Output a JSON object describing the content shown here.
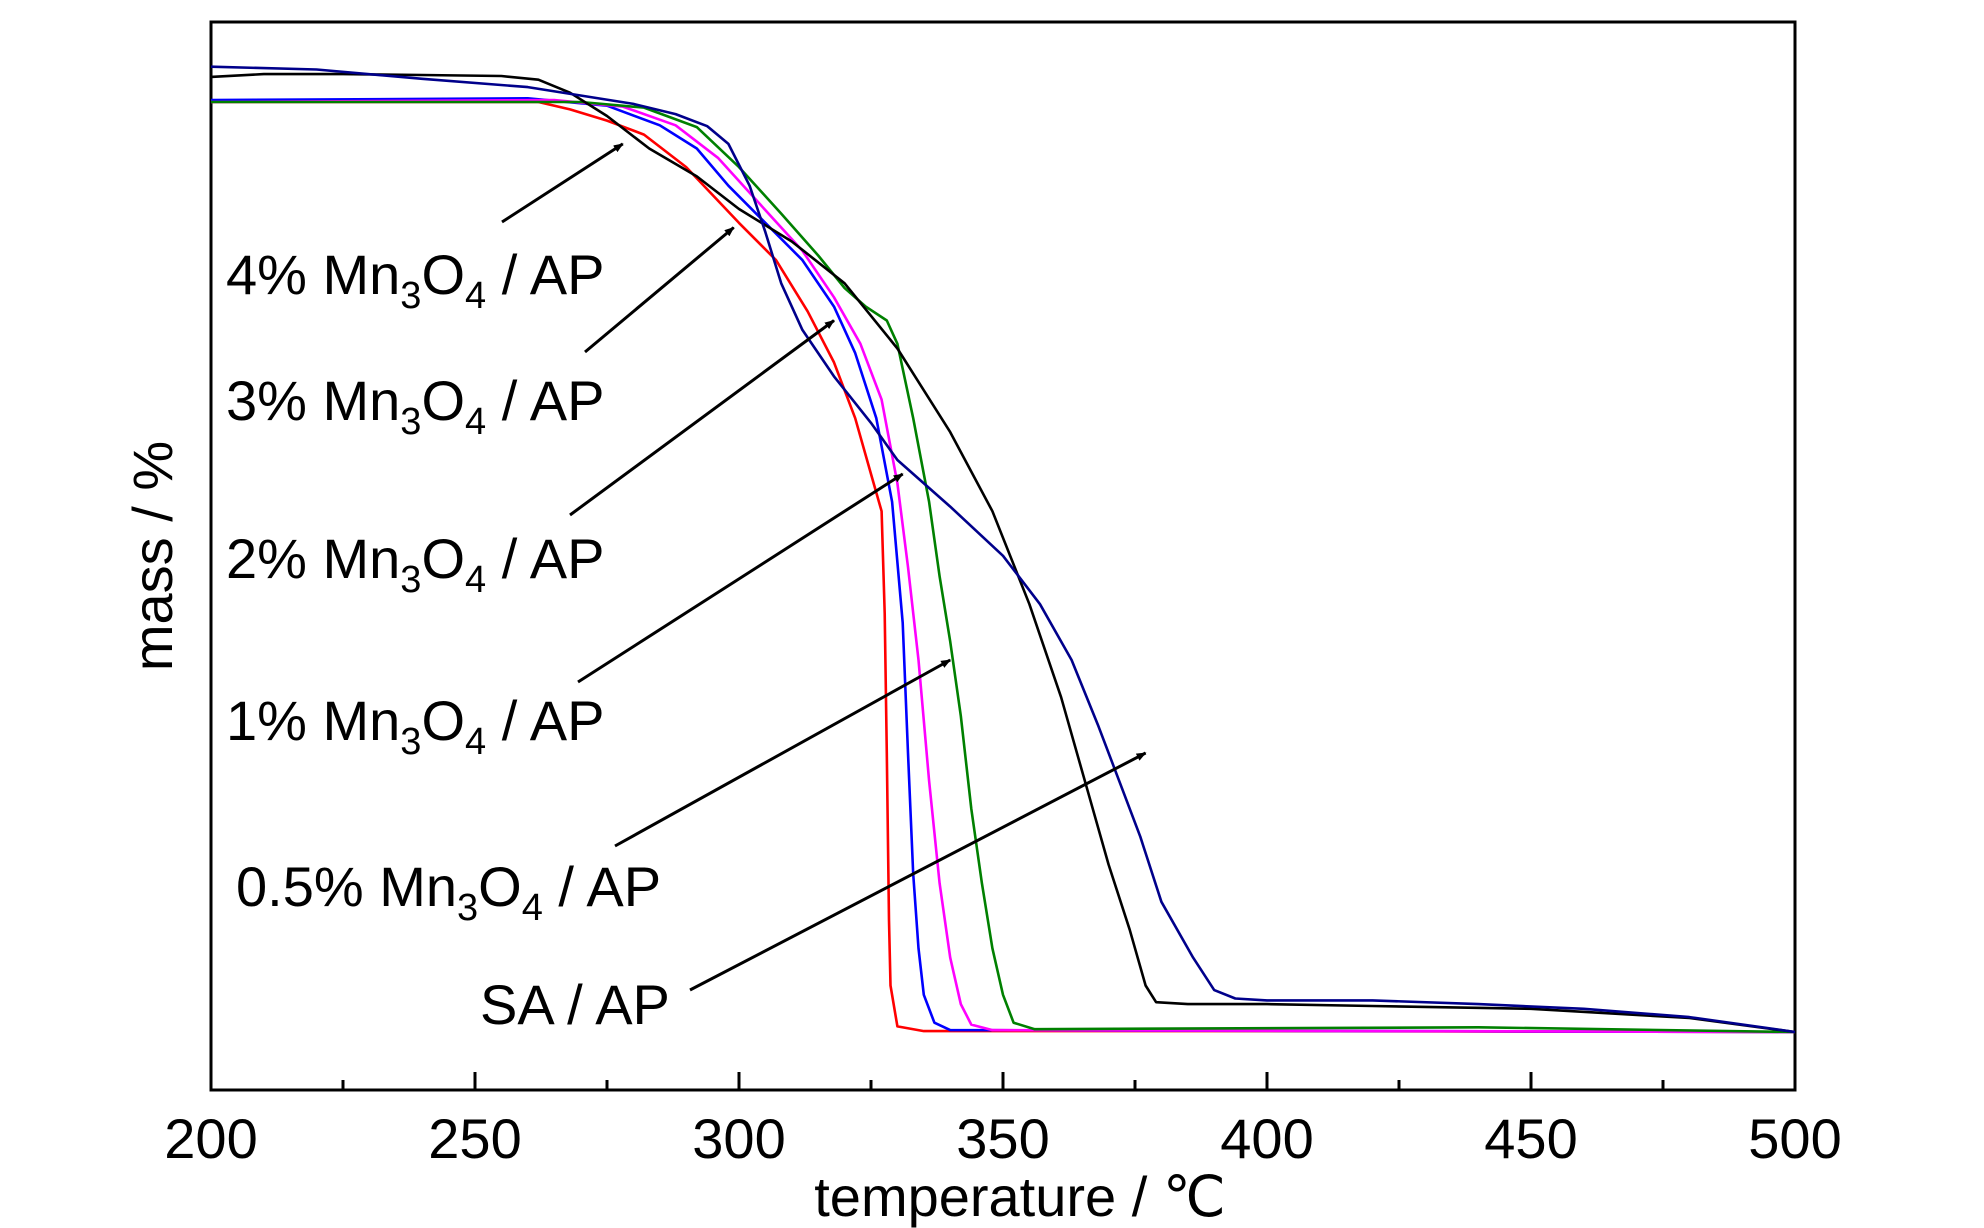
{
  "chart_data": {
    "type": "line",
    "title": "",
    "xlabel": "temperature / ℃",
    "ylabel": "mass / %",
    "xlim": [
      200,
      500
    ],
    "ylim": [
      0,
      105
    ],
    "grid": false,
    "legend": "none",
    "x_ticks": [
      "200",
      "250",
      "300",
      "350",
      "400",
      "450",
      "500"
    ],
    "series": [
      {
        "name": "4% Mn3O4 / AP",
        "color": "#ff0000",
        "points": [
          [
            200,
            100
          ],
          [
            262,
            100
          ],
          [
            268,
            99.2
          ],
          [
            275,
            98
          ],
          [
            282,
            96.5
          ],
          [
            290,
            93
          ],
          [
            300,
            87
          ],
          [
            307,
            83
          ],
          [
            313,
            77.5
          ],
          [
            318,
            72
          ],
          [
            322,
            66
          ],
          [
            325,
            60
          ],
          [
            327,
            56
          ],
          [
            327.6,
            45
          ],
          [
            328,
            30
          ],
          [
            328.4,
            12
          ],
          [
            328.7,
            5
          ],
          [
            330,
            0.6
          ],
          [
            335,
            0.1
          ],
          [
            400,
            0.1
          ],
          [
            500,
            0
          ]
        ]
      },
      {
        "name": "3% Mn3O4 / AP",
        "color": "#0000ff",
        "points": [
          [
            200,
            100.2
          ],
          [
            260,
            100.4
          ],
          [
            275,
            99.6
          ],
          [
            285,
            97.5
          ],
          [
            292,
            95
          ],
          [
            298,
            91
          ],
          [
            305,
            87
          ],
          [
            312,
            83
          ],
          [
            318,
            78
          ],
          [
            322,
            73
          ],
          [
            326,
            66
          ],
          [
            329,
            57
          ],
          [
            331,
            44
          ],
          [
            332,
            30
          ],
          [
            333,
            17
          ],
          [
            334,
            9
          ],
          [
            335,
            4
          ],
          [
            337,
            1
          ],
          [
            340,
            0.2
          ],
          [
            500,
            0
          ]
        ]
      },
      {
        "name": "2% Mn3O4 / AP",
        "color": "#ff00ff",
        "points": [
          [
            200,
            100
          ],
          [
            265,
            100.2
          ],
          [
            278,
            99.5
          ],
          [
            288,
            97.5
          ],
          [
            296,
            94
          ],
          [
            304,
            89
          ],
          [
            312,
            84
          ],
          [
            318,
            79
          ],
          [
            323,
            74
          ],
          [
            327,
            68
          ],
          [
            330,
            59
          ],
          [
            332,
            50
          ],
          [
            334,
            40
          ],
          [
            336,
            27
          ],
          [
            338,
            16
          ],
          [
            340,
            8
          ],
          [
            342,
            3
          ],
          [
            344,
            0.8
          ],
          [
            348,
            0.2
          ],
          [
            500,
            0
          ]
        ]
      },
      {
        "name": "1% Mn3O4 / AP",
        "color": "#008000",
        "points": [
          [
            200,
            100
          ],
          [
            270,
            100
          ],
          [
            282,
            99.4
          ],
          [
            292,
            97.3
          ],
          [
            300,
            93
          ],
          [
            308,
            88
          ],
          [
            315,
            83.5
          ],
          [
            320,
            80
          ],
          [
            324,
            78
          ],
          [
            328,
            76.5
          ],
          [
            330,
            74
          ],
          [
            333,
            66
          ],
          [
            336,
            57
          ],
          [
            338,
            49
          ],
          [
            340,
            42
          ],
          [
            342,
            34
          ],
          [
            344,
            24
          ],
          [
            346,
            16
          ],
          [
            348,
            9
          ],
          [
            350,
            4
          ],
          [
            352,
            1
          ],
          [
            356,
            0.3
          ],
          [
            440,
            0.5
          ],
          [
            500,
            0
          ]
        ]
      },
      {
        "name": "0.5% Mn3O4 / AP",
        "color": "#000000",
        "points": [
          [
            200,
            102.7
          ],
          [
            210,
            103
          ],
          [
            225,
            103
          ],
          [
            240,
            102.9
          ],
          [
            255,
            102.8
          ],
          [
            262,
            102.4
          ],
          [
            268,
            101
          ],
          [
            275,
            98.5
          ],
          [
            283,
            95
          ],
          [
            292,
            92
          ],
          [
            300,
            88.5
          ],
          [
            310,
            85
          ],
          [
            320,
            80.5
          ],
          [
            330,
            73.5
          ],
          [
            340,
            64.5
          ],
          [
            348,
            56
          ],
          [
            355,
            46
          ],
          [
            361,
            36
          ],
          [
            366,
            26
          ],
          [
            370,
            18
          ],
          [
            374,
            11
          ],
          [
            377,
            5
          ],
          [
            379,
            3.2
          ],
          [
            385,
            3
          ],
          [
            400,
            3
          ],
          [
            420,
            2.8
          ],
          [
            450,
            2.5
          ],
          [
            480,
            1.5
          ],
          [
            500,
            0
          ]
        ]
      },
      {
        "name": "SA / AP",
        "color": "#00008b",
        "points": [
          [
            200,
            103.8
          ],
          [
            220,
            103.5
          ],
          [
            240,
            102.5
          ],
          [
            260,
            101.6
          ],
          [
            280,
            99.8
          ],
          [
            288,
            98.7
          ],
          [
            294,
            97.4
          ],
          [
            298,
            95.5
          ],
          [
            302,
            91
          ],
          [
            305,
            86
          ],
          [
            308,
            80.5
          ],
          [
            312,
            75.5
          ],
          [
            318,
            70.5
          ],
          [
            325,
            65.5
          ],
          [
            330,
            61.5
          ],
          [
            340,
            56.5
          ],
          [
            350,
            51.2
          ],
          [
            357,
            46
          ],
          [
            363,
            40
          ],
          [
            368,
            33
          ],
          [
            372,
            27
          ],
          [
            376,
            21
          ],
          [
            380,
            14
          ],
          [
            386,
            8
          ],
          [
            390,
            4.5
          ],
          [
            394,
            3.6
          ],
          [
            400,
            3.4
          ],
          [
            420,
            3.4
          ],
          [
            440,
            3
          ],
          [
            460,
            2.5
          ],
          [
            480,
            1.6
          ],
          [
            500,
            0
          ]
        ]
      }
    ],
    "annotations": [
      {
        "label": "4% Mn",
        "sub1": "3",
        "mid": "O",
        "sub2": "4",
        "tail": " / AP",
        "target": [
          278,
          95.5
        ]
      },
      {
        "label": "3% Mn",
        "sub1": "3",
        "mid": "O",
        "sub2": "4",
        "tail": " / AP",
        "target": [
          299,
          86.5
        ]
      },
      {
        "label": "2% Mn",
        "sub1": "3",
        "mid": "O",
        "sub2": "4",
        "tail": " / AP",
        "target": [
          318,
          76.5
        ]
      },
      {
        "label": "1% Mn",
        "sub1": "3",
        "mid": "O",
        "sub2": "4",
        "tail": " / AP",
        "target": [
          331,
          60
        ]
      },
      {
        "label": "0.5% Mn",
        "sub1": "3",
        "mid": "O",
        "sub2": "4",
        "tail": " / AP",
        "target": [
          340,
          40
        ]
      },
      {
        "label": "SA / AP",
        "sub1": "",
        "mid": "",
        "sub2": "",
        "tail": "",
        "target": [
          377,
          30
        ]
      }
    ]
  }
}
